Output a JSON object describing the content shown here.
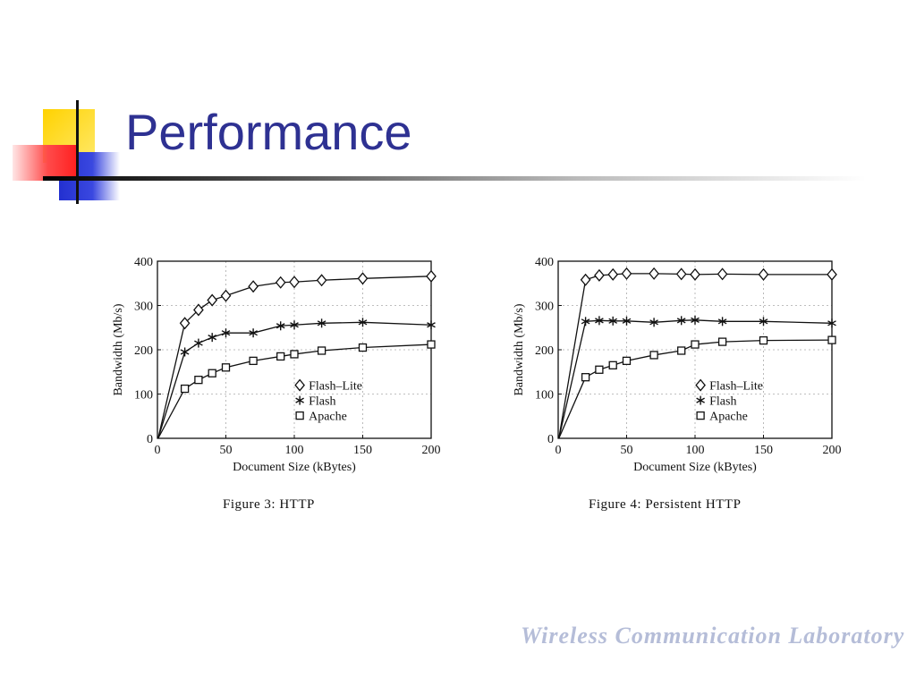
{
  "slide": {
    "title": "Performance",
    "watermark": "Wireless Communication Laboratory",
    "accent_colors": {
      "yellow": "#ffd700",
      "red": "#ff3b3b",
      "blue": "#2e3ad6",
      "title": "#2e3192"
    }
  },
  "chart_data": [
    {
      "type": "line",
      "caption": "Figure 3: HTTP",
      "xlabel": "Document Size (kBytes)",
      "ylabel": "Bandwidth (Mb/s)",
      "xlim": [
        0,
        200
      ],
      "ylim": [
        0,
        400
      ],
      "xticks": [
        0,
        50,
        100,
        150,
        200
      ],
      "yticks": [
        0,
        100,
        200,
        300,
        400
      ],
      "grid": true,
      "legend_position": "lower-right",
      "series": [
        {
          "name": "Flash–Lite",
          "marker": "diamond",
          "x": [
            20,
            30,
            40,
            50,
            70,
            90,
            100,
            120,
            150,
            200
          ],
          "y": [
            260,
            290,
            312,
            322,
            343,
            352,
            353,
            357,
            361,
            366
          ]
        },
        {
          "name": "Flash",
          "marker": "asterisk",
          "x": [
            20,
            30,
            40,
            50,
            70,
            90,
            100,
            120,
            150,
            200
          ],
          "y": [
            195,
            215,
            228,
            238,
            238,
            254,
            256,
            260,
            262,
            256
          ]
        },
        {
          "name": "Apache",
          "marker": "square",
          "x": [
            20,
            30,
            40,
            50,
            70,
            90,
            100,
            120,
            150,
            200
          ],
          "y": [
            112,
            132,
            147,
            160,
            175,
            185,
            190,
            198,
            205,
            212
          ]
        }
      ]
    },
    {
      "type": "line",
      "caption": "Figure 4: Persistent HTTP",
      "xlabel": "Document Size (kBytes)",
      "ylabel": "Bandwidth (Mb/s)",
      "xlim": [
        0,
        200
      ],
      "ylim": [
        0,
        400
      ],
      "xticks": [
        0,
        50,
        100,
        150,
        200
      ],
      "yticks": [
        0,
        100,
        200,
        300,
        400
      ],
      "grid": true,
      "legend_position": "lower-right",
      "series": [
        {
          "name": "Flash–Lite",
          "marker": "diamond",
          "x": [
            20,
            30,
            40,
            50,
            70,
            90,
            100,
            120,
            150,
            200
          ],
          "y": [
            358,
            368,
            370,
            372,
            372,
            371,
            370,
            371,
            370,
            370
          ]
        },
        {
          "name": "Flash",
          "marker": "asterisk",
          "x": [
            20,
            30,
            40,
            50,
            70,
            90,
            100,
            120,
            150,
            200
          ],
          "y": [
            264,
            266,
            265,
            265,
            262,
            266,
            267,
            264,
            264,
            260
          ]
        },
        {
          "name": "Apache",
          "marker": "square",
          "x": [
            20,
            30,
            40,
            50,
            70,
            90,
            100,
            120,
            150,
            200
          ],
          "y": [
            138,
            155,
            165,
            175,
            188,
            198,
            212,
            218,
            221,
            222
          ]
        }
      ]
    }
  ]
}
